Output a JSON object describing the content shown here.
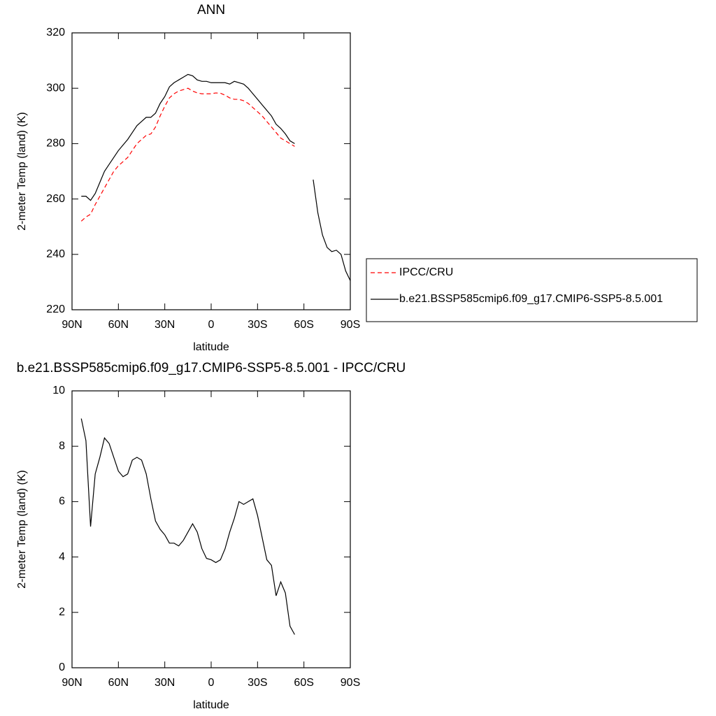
{
  "chart_data": [
    {
      "type": "line",
      "title": "ANN",
      "xlabel": "latitude",
      "ylabel": "2-meter Temp (land) (K)",
      "x": [
        84,
        81,
        78,
        75,
        72,
        69,
        66,
        63,
        60,
        57,
        54,
        51,
        48,
        45,
        42,
        39,
        36,
        33,
        30,
        27,
        24,
        21,
        18,
        15,
        12,
        9,
        6,
        3,
        0,
        -3,
        -6,
        -9,
        -12,
        -15,
        -18,
        -21,
        -24,
        -27,
        -30,
        -33,
        -36,
        -39,
        -42,
        -45,
        -48,
        -51,
        -54,
        -57,
        -60,
        -63,
        -66,
        -69,
        -72,
        -75,
        -78,
        -81,
        -84,
        -87,
        -90
      ],
      "series": [
        {
          "name": "IPCC/CRU",
          "color": "#ff0000",
          "line_style": "dashed",
          "values": [
            252,
            253.5,
            254.5,
            258,
            261,
            264,
            267,
            270,
            272,
            273.5,
            275,
            277.5,
            280,
            281.5,
            283,
            283.5,
            286,
            290,
            293.5,
            296.5,
            298,
            299,
            299.5,
            300,
            299,
            298.3,
            298,
            298,
            298,
            298.3,
            298.2,
            297.5,
            296.5,
            296,
            296,
            295.5,
            294.5,
            293,
            291.5,
            290,
            288,
            286,
            284,
            282,
            281,
            280,
            279,
            null,
            null,
            null,
            null,
            null,
            null,
            null,
            null,
            null,
            null,
            null,
            null
          ]
        },
        {
          "name": "b.e21.BSSP585cmip6.f09_g17.CMIP6-SSP5-8.5.001",
          "color": "#000000",
          "line_style": "solid",
          "values": [
            261,
            261,
            259.5,
            262,
            266,
            270,
            272.5,
            275,
            277.5,
            279.5,
            281.5,
            284,
            286.5,
            288,
            289.5,
            289.5,
            291,
            294.5,
            297,
            300.5,
            302,
            303,
            304,
            305,
            304.5,
            303,
            302.5,
            302.5,
            302,
            302,
            302,
            302,
            301.5,
            302.5,
            302,
            301.5,
            300,
            298,
            296,
            294,
            292,
            290,
            287,
            285.5,
            283.5,
            281,
            280,
            null,
            null,
            null,
            267,
            255,
            247,
            242.5,
            241,
            241.5,
            240,
            234,
            230.5
          ]
        }
      ],
      "xlim": [
        90,
        -90
      ],
      "xticks": [
        {
          "value": 90,
          "label": "90N"
        },
        {
          "value": 60,
          "label": "60N"
        },
        {
          "value": 30,
          "label": "30N"
        },
        0,
        {
          "value": -30,
          "label": "30S"
        },
        {
          "value": -60,
          "label": "60S"
        },
        {
          "value": -90,
          "label": "90S"
        }
      ],
      "ylim": [
        220,
        320
      ],
      "yticks": [
        220,
        240,
        260,
        280,
        300,
        320
      ],
      "legend": "right"
    },
    {
      "type": "line",
      "title": "b.e21.BSSP585cmip6.f09_g17.CMIP6-SSP5-8.5.001 - IPCC/CRU",
      "xlabel": "latitude",
      "ylabel": "2-meter Temp (land) (K)",
      "x": [
        84,
        81,
        78,
        75,
        72,
        69,
        66,
        63,
        60,
        57,
        54,
        51,
        48,
        45,
        42,
        39,
        36,
        33,
        30,
        27,
        24,
        21,
        18,
        15,
        12,
        9,
        6,
        3,
        0,
        -3,
        -6,
        -9,
        -12,
        -15,
        -18,
        -21,
        -24,
        -27,
        -30,
        -33,
        -36,
        -39,
        -42,
        -45,
        -48,
        -51,
        -54
      ],
      "series": [
        {
          "color": "#000000",
          "line_style": "solid",
          "values": [
            9.0,
            8.2,
            5.1,
            7.0,
            7.6,
            8.3,
            8.1,
            7.6,
            7.1,
            6.9,
            7.0,
            7.5,
            7.6,
            7.5,
            7.0,
            6.1,
            5.3,
            5.0,
            4.8,
            4.5,
            4.5,
            4.4,
            4.6,
            4.9,
            5.2,
            4.9,
            4.3,
            3.95,
            3.9,
            3.8,
            3.9,
            4.3,
            4.9,
            5.4,
            6.0,
            5.9,
            6.0,
            6.1,
            5.5,
            4.7,
            3.9,
            3.7,
            2.6,
            3.1,
            2.7,
            1.5,
            1.2
          ]
        }
      ],
      "xlim": [
        90,
        -90
      ],
      "xticks": [
        {
          "value": 90,
          "label": "90N"
        },
        {
          "value": 60,
          "label": "60N"
        },
        {
          "value": 30,
          "label": "30N"
        },
        0,
        {
          "value": -30,
          "label": "30S"
        },
        {
          "value": -60,
          "label": "60S"
        },
        {
          "value": -90,
          "label": "90S"
        }
      ],
      "ylim": [
        0,
        10
      ],
      "yticks": [
        0,
        2,
        4,
        6,
        8,
        10
      ]
    }
  ]
}
